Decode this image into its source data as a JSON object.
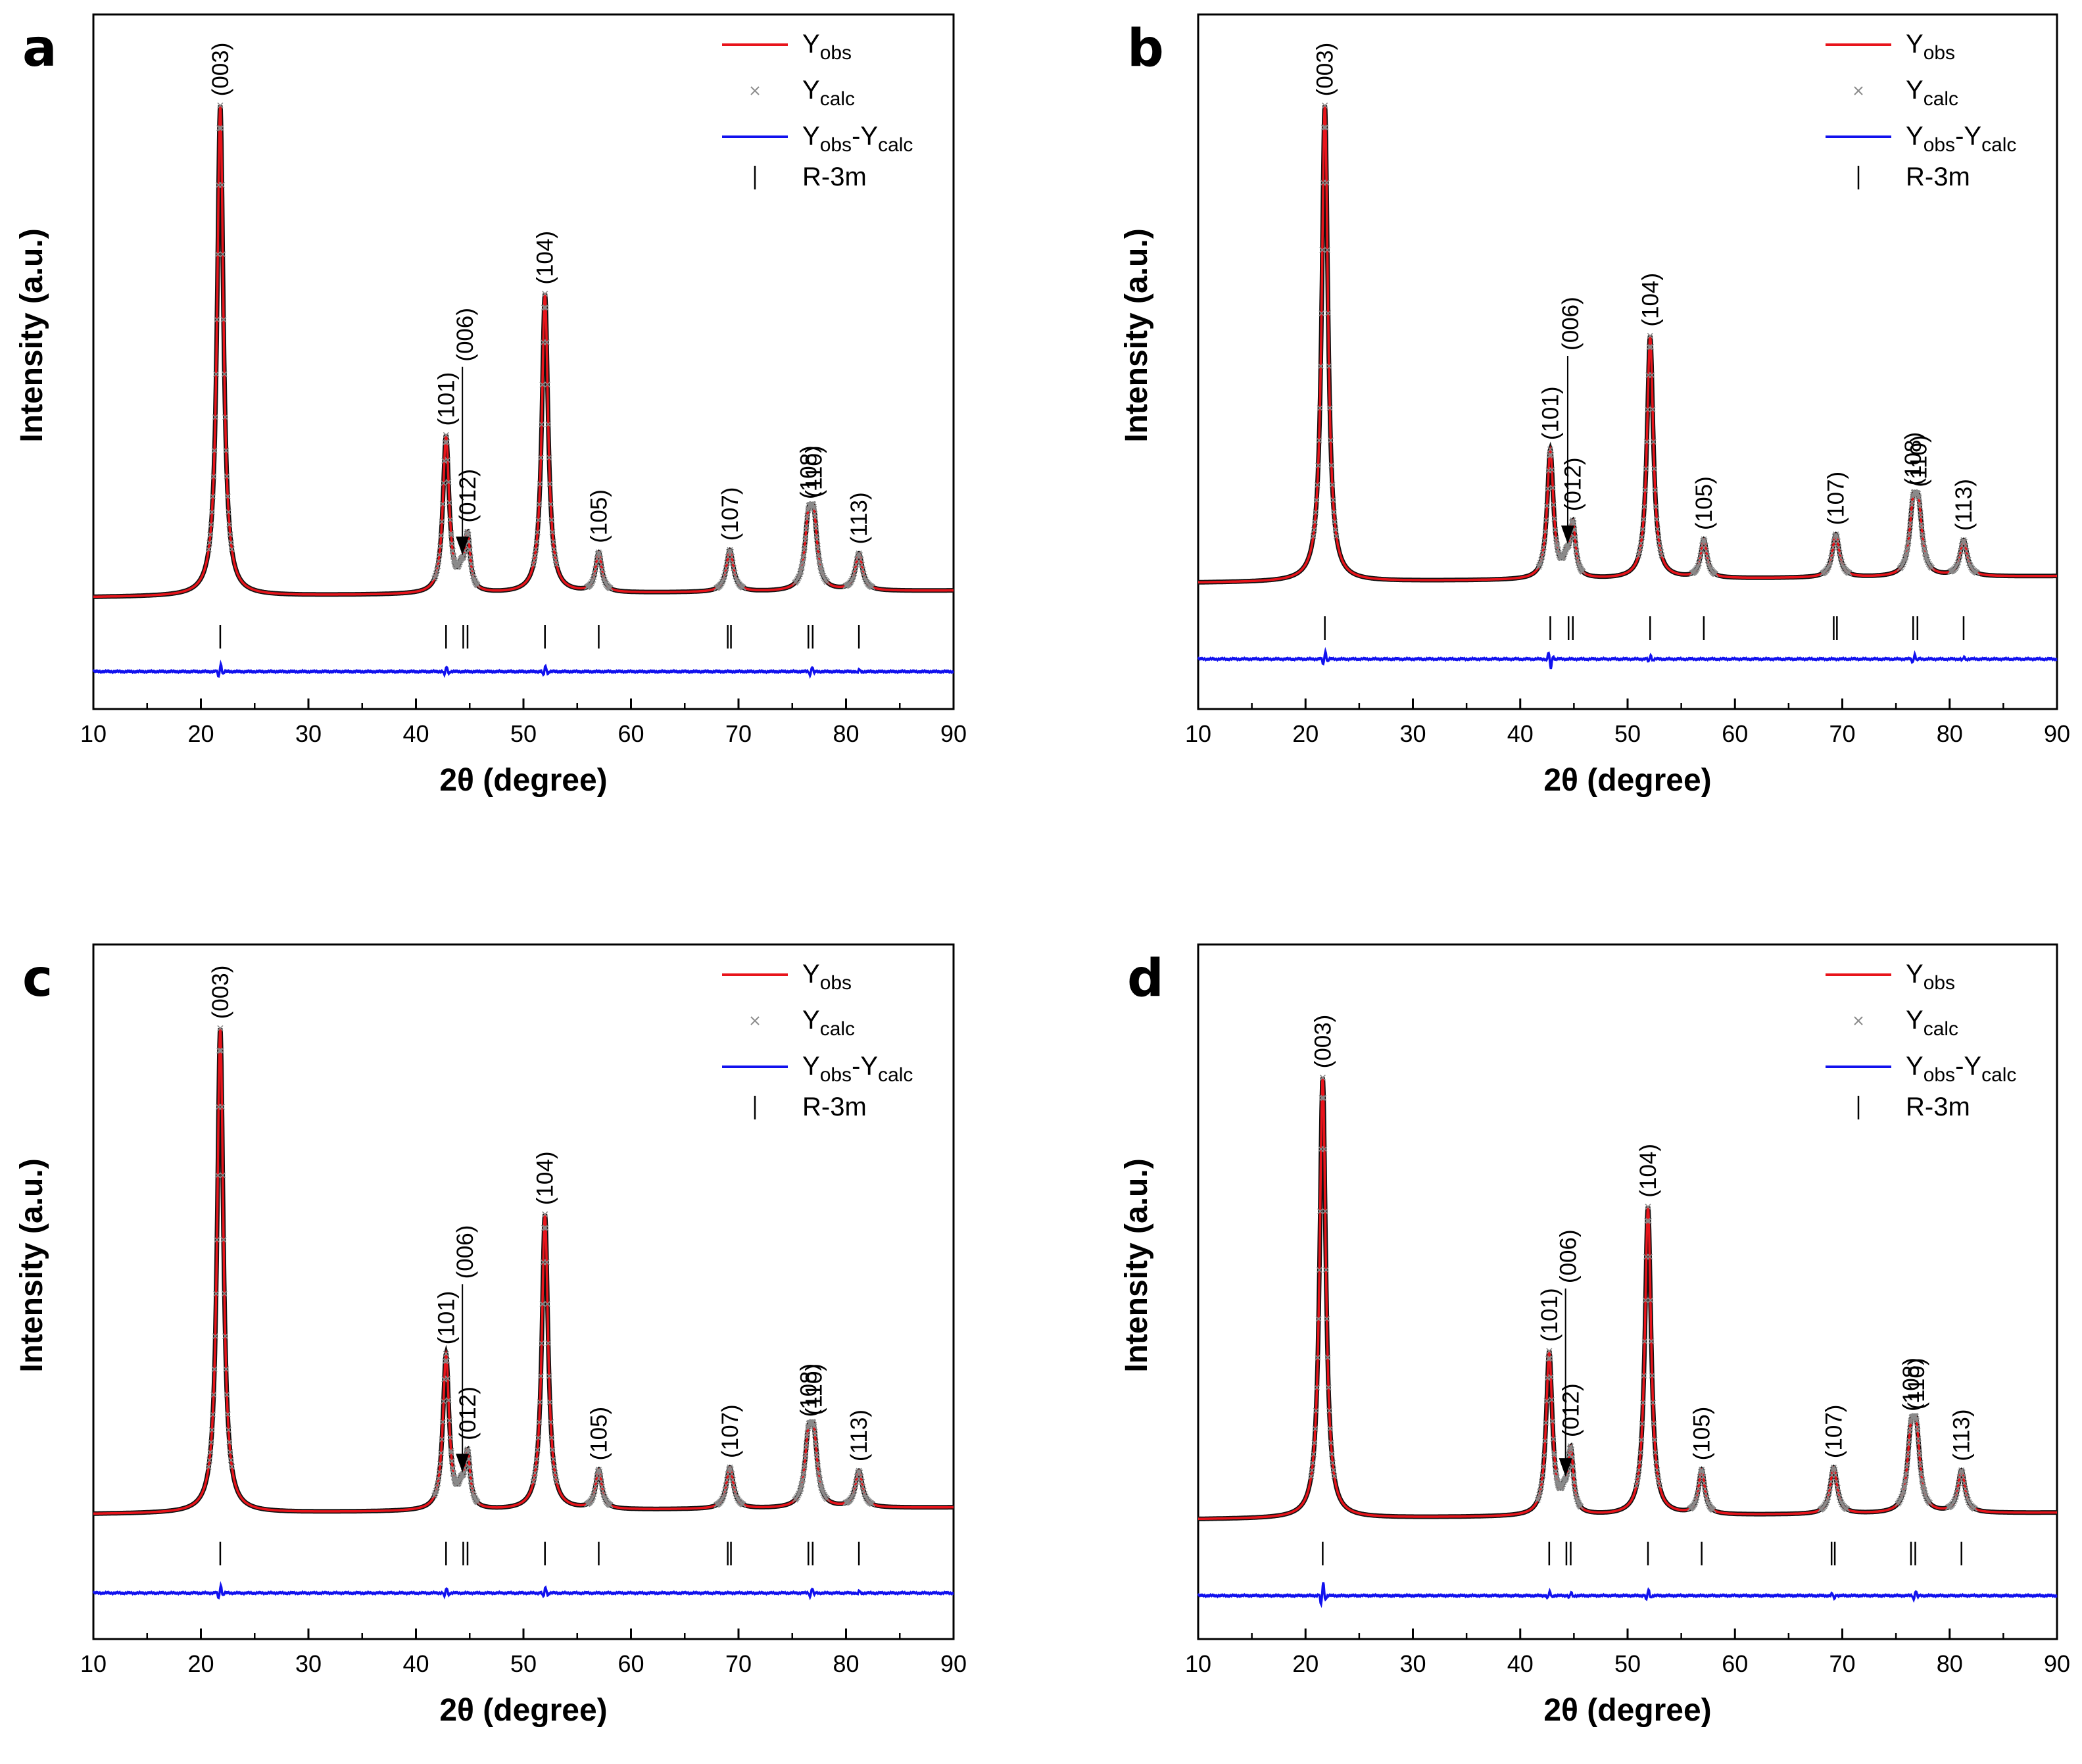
{
  "figure": {
    "xlabel": "2θ (degree)",
    "ylabel": "Intensity (a.u.)"
  },
  "legend": {
    "obs": {
      "main": "Y",
      "sub": "obs"
    },
    "calc": {
      "main": "Y",
      "sub": "calc"
    },
    "diff": {
      "main1": "Y",
      "sub1": "obs",
      "sep": "-",
      "main2": "Y",
      "sub2": "calc"
    },
    "phase": "R-3m"
  },
  "colors": {
    "obs": "#e8141b",
    "calc": "#8a8a8a",
    "diff": "#1111ee",
    "axis": "#000000"
  },
  "chart_data": [
    {
      "panel": "a",
      "type": "line",
      "xlim": [
        10,
        90
      ],
      "x_ticks": [
        10,
        20,
        30,
        40,
        50,
        60,
        70,
        80,
        90
      ],
      "xlabel": "2θ (degree)",
      "ylabel": "Intensity (a.u.)",
      "series": [
        "Y_obs",
        "Y_calc",
        "Y_obs-Y_calc",
        "R-3m reflection markers"
      ],
      "peaks": [
        {
          "hkl": "(003)",
          "two_theta": 21.8,
          "height": 100,
          "width": 0.35
        },
        {
          "hkl": "(101)",
          "two_theta": 42.8,
          "height": 32,
          "width": 0.35
        },
        {
          "hkl": "(006)",
          "two_theta": 44.2,
          "height": 3,
          "width": 0.3,
          "arrow": true
        },
        {
          "hkl": "(012)",
          "two_theta": 44.8,
          "height": 11,
          "width": 0.3
        },
        {
          "hkl": "(104)",
          "two_theta": 52.0,
          "height": 61,
          "width": 0.35
        },
        {
          "hkl": "(105)",
          "two_theta": 57.0,
          "height": 8,
          "width": 0.35
        },
        {
          "hkl": "(107)",
          "two_theta": 69.2,
          "height": 8.5,
          "width": 0.4
        },
        {
          "hkl": "(108)",
          "two_theta": 76.5,
          "height": 12,
          "width": 0.4
        },
        {
          "hkl": "(110)",
          "two_theta": 77.0,
          "height": 12.5,
          "width": 0.4
        },
        {
          "hkl": "(113)",
          "two_theta": 81.2,
          "height": 7.5,
          "width": 0.4
        }
      ],
      "reflection_markers": [
        21.8,
        42.8,
        44.4,
        44.8,
        52.0,
        57.0,
        69.0,
        69.3,
        76.5,
        76.9,
        81.2
      ],
      "diff_spikes": [
        {
          "two_theta": 21.8,
          "amp": 4
        },
        {
          "two_theta": 42.8,
          "amp": 2.5
        },
        {
          "two_theta": 52.0,
          "amp": 3
        },
        {
          "two_theta": 76.8,
          "amp": 2.5
        },
        {
          "two_theta": 81.2,
          "amp": 1
        }
      ]
    },
    {
      "panel": "b",
      "type": "line",
      "xlim": [
        10,
        90
      ],
      "x_ticks": [
        10,
        20,
        30,
        40,
        50,
        60,
        70,
        80,
        90
      ],
      "xlabel": "2θ (degree)",
      "ylabel": "Intensity (a.u.)",
      "series": [
        "Y_obs",
        "Y_calc",
        "Y_obs-Y_calc",
        "R-3m reflection markers"
      ],
      "peaks": [
        {
          "hkl": "(003)",
          "two_theta": 21.8,
          "height": 100,
          "width": 0.35
        },
        {
          "hkl": "(101)",
          "two_theta": 42.8,
          "height": 27,
          "width": 0.35
        },
        {
          "hkl": "(006)",
          "two_theta": 44.3,
          "height": 3,
          "width": 0.3,
          "arrow": true
        },
        {
          "hkl": "(012)",
          "two_theta": 44.9,
          "height": 11,
          "width": 0.3
        },
        {
          "hkl": "(104)",
          "two_theta": 52.1,
          "height": 51,
          "width": 0.35
        },
        {
          "hkl": "(105)",
          "two_theta": 57.1,
          "height": 8,
          "width": 0.35
        },
        {
          "hkl": "(107)",
          "two_theta": 69.4,
          "height": 9,
          "width": 0.4
        },
        {
          "hkl": "(108)",
          "two_theta": 76.6,
          "height": 12.5,
          "width": 0.4
        },
        {
          "hkl": "(110)",
          "two_theta": 77.1,
          "height": 12,
          "width": 0.4
        },
        {
          "hkl": "(113)",
          "two_theta": 81.3,
          "height": 7.5,
          "width": 0.4
        }
      ],
      "reflection_markers": [
        21.8,
        42.8,
        44.5,
        44.9,
        52.1,
        57.1,
        69.2,
        69.5,
        76.6,
        77.0,
        81.3
      ],
      "diff_spikes": [
        {
          "two_theta": 21.8,
          "amp": 4
        },
        {
          "two_theta": 42.8,
          "amp": -5
        },
        {
          "two_theta": 52.1,
          "amp": 2
        },
        {
          "two_theta": 76.7,
          "amp": 2.5
        },
        {
          "two_theta": 81.3,
          "amp": 1
        }
      ]
    },
    {
      "panel": "c",
      "type": "line",
      "xlim": [
        10,
        90
      ],
      "x_ticks": [
        10,
        20,
        30,
        40,
        50,
        60,
        70,
        80,
        90
      ],
      "xlabel": "2θ (degree)",
      "ylabel": "Intensity (a.u.)",
      "series": [
        "Y_obs",
        "Y_calc",
        "Y_obs-Y_calc",
        "R-3m reflection markers"
      ],
      "peaks": [
        {
          "hkl": "(003)",
          "two_theta": 21.8,
          "height": 100,
          "width": 0.35
        },
        {
          "hkl": "(101)",
          "two_theta": 42.8,
          "height": 32,
          "width": 0.35
        },
        {
          "hkl": "(006)",
          "two_theta": 44.2,
          "height": 3,
          "width": 0.3,
          "arrow": true
        },
        {
          "hkl": "(012)",
          "two_theta": 44.8,
          "height": 11,
          "width": 0.3
        },
        {
          "hkl": "(104)",
          "two_theta": 52.0,
          "height": 61,
          "width": 0.35
        },
        {
          "hkl": "(105)",
          "two_theta": 57.0,
          "height": 8,
          "width": 0.35
        },
        {
          "hkl": "(107)",
          "two_theta": 69.2,
          "height": 8.5,
          "width": 0.4
        },
        {
          "hkl": "(108)",
          "two_theta": 76.5,
          "height": 12,
          "width": 0.4
        },
        {
          "hkl": "(110)",
          "two_theta": 77.0,
          "height": 12.5,
          "width": 0.4
        },
        {
          "hkl": "(113)",
          "two_theta": 81.2,
          "height": 7.5,
          "width": 0.4
        }
      ],
      "reflection_markers": [
        21.8,
        42.8,
        44.4,
        44.8,
        52.0,
        57.0,
        69.0,
        69.3,
        76.5,
        76.9,
        81.2
      ],
      "diff_spikes": [
        {
          "two_theta": 21.8,
          "amp": 4
        },
        {
          "two_theta": 42.8,
          "amp": 2.5
        },
        {
          "two_theta": 52.0,
          "amp": 3
        },
        {
          "two_theta": 76.8,
          "amp": 2.5
        },
        {
          "two_theta": 81.2,
          "amp": 1
        }
      ]
    },
    {
      "panel": "d",
      "type": "line",
      "xlim": [
        10,
        90
      ],
      "x_ticks": [
        10,
        20,
        30,
        40,
        50,
        60,
        70,
        80,
        90
      ],
      "xlabel": "2θ (degree)",
      "ylabel": "Intensity (a.u.)",
      "series": [
        "Y_obs",
        "Y_calc",
        "Y_obs-Y_calc",
        "R-3m reflection markers"
      ],
      "peaks": [
        {
          "hkl": "(003)",
          "two_theta": 21.6,
          "height": 100,
          "width": 0.35
        },
        {
          "hkl": "(101)",
          "two_theta": 42.7,
          "height": 37,
          "width": 0.35
        },
        {
          "hkl": "(006)",
          "two_theta": 44.1,
          "height": 3,
          "width": 0.3,
          "arrow": true
        },
        {
          "hkl": "(012)",
          "two_theta": 44.7,
          "height": 14,
          "width": 0.3
        },
        {
          "hkl": "(104)",
          "two_theta": 51.9,
          "height": 70,
          "width": 0.35
        },
        {
          "hkl": "(105)",
          "two_theta": 56.9,
          "height": 10,
          "width": 0.35
        },
        {
          "hkl": "(107)",
          "two_theta": 69.2,
          "height": 10.5,
          "width": 0.4
        },
        {
          "hkl": "(108)",
          "two_theta": 76.4,
          "height": 15,
          "width": 0.4
        },
        {
          "hkl": "(110)",
          "two_theta": 76.9,
          "height": 15.5,
          "width": 0.4
        },
        {
          "hkl": "(113)",
          "two_theta": 81.1,
          "height": 9.5,
          "width": 0.4
        }
      ],
      "reflection_markers": [
        21.6,
        42.7,
        44.3,
        44.7,
        51.9,
        56.9,
        69.0,
        69.3,
        76.4,
        76.8,
        81.1
      ],
      "diff_spikes": [
        {
          "two_theta": 21.6,
          "amp": 7
        },
        {
          "two_theta": 42.7,
          "amp": 2
        },
        {
          "two_theta": 44.7,
          "amp": 1.5
        },
        {
          "two_theta": 51.9,
          "amp": 3
        },
        {
          "two_theta": 69.2,
          "amp": -1.5
        },
        {
          "two_theta": 76.8,
          "amp": 2.5
        }
      ]
    }
  ]
}
